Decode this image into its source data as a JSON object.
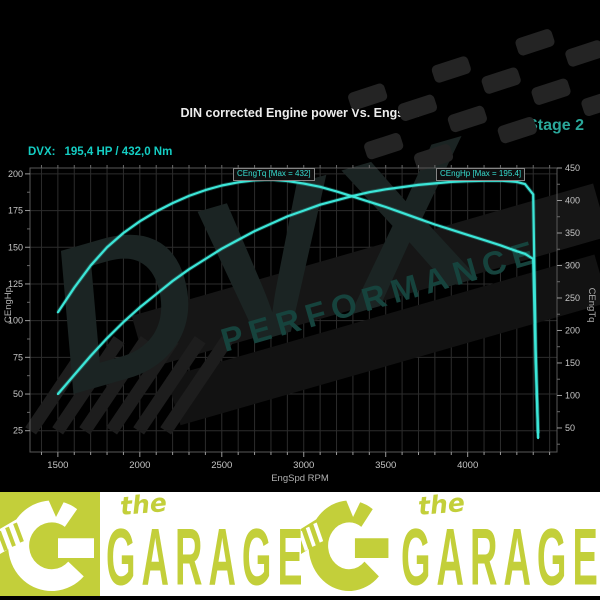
{
  "header": {
    "title": "DIN corrected Engine power Vs. Engspd",
    "stage_label": "Stage 2",
    "result_prefix": "DVX:",
    "result_value": "195,4 HP / 432,0 Nm"
  },
  "watermark": {
    "line1": "DVX",
    "line2": "PERFORMANCE"
  },
  "chart_data": {
    "type": "line",
    "title": "DIN corrected Engine power Vs. Engspd",
    "xlabel": "EngSpd RPM",
    "ylabel_left": "CEngHp",
    "ylabel_right": "CEngTq",
    "xlim": [
      1330,
      4545
    ],
    "ylim_left": [
      10.5,
      204
    ],
    "ylim_right": [
      13,
      450
    ],
    "x_ticks": [
      1500,
      2000,
      2500,
      3000,
      3500,
      4000
    ],
    "x_minor_step": 100,
    "y_ticks_left": [
      25,
      50,
      75,
      100,
      125,
      150,
      175,
      200
    ],
    "y_ticks_right": [
      50,
      100,
      150,
      200,
      250,
      300,
      350,
      400,
      450
    ],
    "grid": true,
    "line_color": "#3ce6d8",
    "x": [
      1500,
      1600,
      1700,
      1800,
      1900,
      2000,
      2100,
      2200,
      2300,
      2400,
      2500,
      2600,
      2700,
      2800,
      2900,
      3000,
      3100,
      3200,
      3300,
      3400,
      3500,
      3600,
      3700,
      3800,
      3900,
      4000,
      4100,
      4200,
      4300,
      4350,
      4400,
      4415,
      4430
    ],
    "series": [
      {
        "name": "CEngTq",
        "axis": "right",
        "label": "CEngTq [Max = 432]",
        "max": 432,
        "values": [
          228,
          266,
          300,
          328,
          350,
          368,
          383,
          396,
          407,
          416,
          423,
          428,
          431,
          432,
          430,
          426,
          421,
          414,
          406,
          398,
          390,
          381,
          372,
          363,
          355,
          347,
          339,
          331,
          322,
          318,
          310,
          150,
          42
        ]
      },
      {
        "name": "CEngHp",
        "axis": "left",
        "label": "CEngHp [Max = 195.4]",
        "max": 195.4,
        "values": [
          50,
          63,
          76,
          88,
          99,
          109,
          118,
          127,
          135,
          142,
          149,
          155,
          161,
          166,
          171,
          175,
          179,
          182,
          185,
          187.5,
          189.5,
          191,
          192.5,
          193.5,
          194.5,
          195,
          195.3,
          195.4,
          194.5,
          193,
          186,
          80,
          20
        ]
      }
    ]
  },
  "footer": {
    "brand_green": "#c3cf3a",
    "white": "#ffffff",
    "logos": [
      {
        "g_style": "white-on-green",
        "the": "the",
        "name": "GARAGE"
      },
      {
        "g_style": "green-on-white",
        "the": "the",
        "name": "GARAGE"
      }
    ]
  },
  "colors": {
    "background": "#000000",
    "grid": "#2c2c2c",
    "plot_border": "#585858",
    "tick_text": "#c6c6c6",
    "axis_title": "#b0b0b0",
    "title_text": "#ededed",
    "stage_text": "#2aa79a",
    "result_text": "#14cdc3",
    "curve": "#3ce6d8",
    "watermark_big": "#1b2423",
    "watermark_small": "#16433d",
    "flag": "#242424"
  }
}
